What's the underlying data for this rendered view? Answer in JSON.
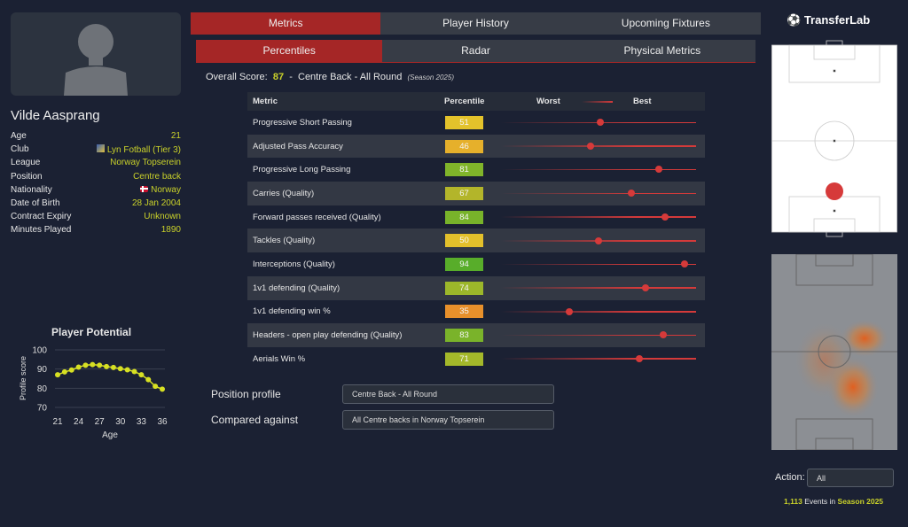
{
  "player": {
    "name": "Vilde Aasprang",
    "info": [
      {
        "label": "Age",
        "value": "21"
      },
      {
        "label": "Club",
        "value": "Lyn Fotball (Tier 3)",
        "icon": "club-crest-icon"
      },
      {
        "label": "League",
        "value": "Norway Topserein"
      },
      {
        "label": "Position",
        "value": "Centre back"
      },
      {
        "label": "Nationality",
        "value": "Norway",
        "icon": "norway-flag-icon"
      },
      {
        "label": "Date of Birth",
        "value": "28 Jan 2004"
      },
      {
        "label": "Contract Expiry",
        "value": "Unknown"
      },
      {
        "label": "Minutes Played",
        "value": "1890"
      }
    ]
  },
  "chart_data": {
    "type": "line",
    "title": "Player Potential",
    "xlabel": "Age",
    "ylabel": "Profile score",
    "x": [
      21,
      22,
      23,
      24,
      25,
      26,
      27,
      28,
      29,
      30,
      31,
      32,
      33,
      34,
      35,
      36
    ],
    "values": [
      87,
      88.5,
      89.5,
      91,
      92,
      92.3,
      92,
      91.3,
      90.8,
      90.2,
      89.6,
      88.7,
      87,
      84.5,
      81,
      79.5
    ],
    "xticks": [
      "21",
      "24",
      "27",
      "30",
      "33",
      "36"
    ],
    "yticks": [
      "100",
      "90",
      "80",
      "70"
    ],
    "ylim": [
      70,
      100
    ],
    "xlim": [
      21,
      36
    ],
    "color": "#d7e023"
  },
  "tabs": [
    "Metrics",
    "Player History",
    "Upcoming Fixtures"
  ],
  "subtabs": [
    "Percentiles",
    "Radar",
    "Physical Metrics"
  ],
  "overall": {
    "label": "Overall Score:",
    "value": "87",
    "sep": "-",
    "profile": "Centre Back - All Round",
    "season": "(Season 2025)"
  },
  "table": {
    "headers": {
      "metric": "Metric",
      "percentile": "Percentile",
      "worst": "Worst",
      "best": "Best"
    },
    "rows": [
      {
        "metric": "Progressive Short Passing",
        "p": 51,
        "color": "#e3c22b"
      },
      {
        "metric": "Adjusted Pass Accuracy",
        "p": 46,
        "color": "#e6b02b"
      },
      {
        "metric": "Progressive Long Passing",
        "p": 81,
        "color": "#80b42a"
      },
      {
        "metric": "Carries (Quality)",
        "p": 67,
        "color": "#b3b52a"
      },
      {
        "metric": "Forward passes received (Quality)",
        "p": 84,
        "color": "#78b32a"
      },
      {
        "metric": "Tackles (Quality)",
        "p": 50,
        "color": "#e3c02b"
      },
      {
        "metric": "Interceptions (Quality)",
        "p": 94,
        "color": "#58ad2a"
      },
      {
        "metric": "1v1 defending (Quality)",
        "p": 74,
        "color": "#9cb72a"
      },
      {
        "metric": "1v1 defending win %",
        "p": 35,
        "color": "#e8902b"
      },
      {
        "metric": "Headers - open play defending (Quality)",
        "p": 83,
        "color": "#7ab32a"
      },
      {
        "metric": "Aerials Win %",
        "p": 71,
        "color": "#a4b82a"
      }
    ]
  },
  "profile": {
    "position_label": "Position profile",
    "position_value": "Centre Back - All Round",
    "compared_label": "Compared against",
    "compared_value": "All Centre backs in Norway Topserein"
  },
  "brand": "TransferLab",
  "action": {
    "label": "Action:",
    "value": "All"
  },
  "events": {
    "count": "1,113",
    "mid": "Events in",
    "season": "Season 2025"
  }
}
